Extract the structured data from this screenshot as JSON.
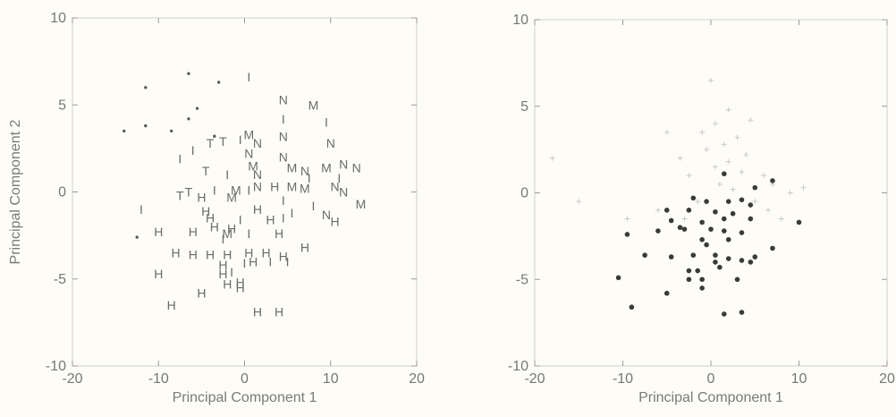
{
  "chart_data": [
    {
      "type": "scatter",
      "marker_style": "letter",
      "xlabel": "Principal Component 1",
      "ylabel": "Principal Component 2",
      "xlim": [
        -20,
        20
      ],
      "ylim": [
        -10,
        10
      ],
      "xticks": [
        -20,
        -10,
        0,
        10,
        20
      ],
      "yticks": [
        -10,
        -5,
        0,
        5,
        10
      ],
      "xtick_labels": [
        "-20",
        "-10",
        "0",
        "10",
        "20"
      ],
      "ytick_labels": [
        "-10",
        "-5",
        "0",
        "5",
        "10"
      ],
      "grid": false,
      "points": [
        {
          "x": -14.0,
          "y": 3.5,
          "label": "."
        },
        {
          "x": -11.5,
          "y": 6.0,
          "label": "."
        },
        {
          "x": -11.5,
          "y": 3.8,
          "label": "."
        },
        {
          "x": -6.5,
          "y": 6.8,
          "label": "."
        },
        {
          "x": -6.5,
          "y": 4.2,
          "label": "."
        },
        {
          "x": -3.0,
          "y": 6.3,
          "label": "."
        },
        {
          "x": -12.5,
          "y": -2.6,
          "label": "."
        },
        {
          "x": -8.5,
          "y": 3.5,
          "label": "."
        },
        {
          "x": -5.5,
          "y": 4.8,
          "label": "."
        },
        {
          "x": -3.5,
          "y": 3.2,
          "label": "."
        },
        {
          "x": 0.5,
          "y": 6.6,
          "label": "I"
        },
        {
          "x": 4.5,
          "y": 5.3,
          "label": "N"
        },
        {
          "x": 8.0,
          "y": 5.0,
          "label": "M"
        },
        {
          "x": 9.5,
          "y": 4.0,
          "label": "I"
        },
        {
          "x": 4.5,
          "y": 4.2,
          "label": "I"
        },
        {
          "x": 4.5,
          "y": 3.2,
          "label": "N"
        },
        {
          "x": 10.0,
          "y": 2.8,
          "label": "N"
        },
        {
          "x": -0.5,
          "y": 3.0,
          "label": "I"
        },
        {
          "x": 0.5,
          "y": 3.3,
          "label": "M"
        },
        {
          "x": -4.0,
          "y": 2.8,
          "label": "T"
        },
        {
          "x": -2.5,
          "y": 2.9,
          "label": "T"
        },
        {
          "x": -6.0,
          "y": 2.4,
          "label": "I"
        },
        {
          "x": 1.5,
          "y": 2.8,
          "label": "N"
        },
        {
          "x": 0.5,
          "y": 2.2,
          "label": "N"
        },
        {
          "x": 1.0,
          "y": 1.5,
          "label": "M"
        },
        {
          "x": -7.5,
          "y": 1.9,
          "label": "I"
        },
        {
          "x": 4.5,
          "y": 2.0,
          "label": "N"
        },
        {
          "x": 5.5,
          "y": 1.4,
          "label": "M"
        },
        {
          "x": 7.0,
          "y": 1.2,
          "label": "N"
        },
        {
          "x": 9.5,
          "y": 1.4,
          "label": "M"
        },
        {
          "x": 11.5,
          "y": 1.6,
          "label": "N"
        },
        {
          "x": 13.0,
          "y": 1.4,
          "label": "N"
        },
        {
          "x": -4.5,
          "y": 1.2,
          "label": "T"
        },
        {
          "x": -2.0,
          "y": 1.0,
          "label": "I"
        },
        {
          "x": 1.5,
          "y": 1.0,
          "label": "N"
        },
        {
          "x": 7.5,
          "y": 0.8,
          "label": "I"
        },
        {
          "x": 11.0,
          "y": 0.8,
          "label": "I"
        },
        {
          "x": -6.5,
          "y": 0.0,
          "label": "T"
        },
        {
          "x": -3.5,
          "y": 0.1,
          "label": "I"
        },
        {
          "x": -1.0,
          "y": 0.1,
          "label": "M"
        },
        {
          "x": 0.5,
          "y": 0.1,
          "label": "I"
        },
        {
          "x": 1.5,
          "y": 0.3,
          "label": "N"
        },
        {
          "x": 3.5,
          "y": 0.3,
          "label": "H"
        },
        {
          "x": 5.5,
          "y": 0.3,
          "label": "M"
        },
        {
          "x": 7.0,
          "y": 0.2,
          "label": "M"
        },
        {
          "x": 10.5,
          "y": 0.3,
          "label": "N"
        },
        {
          "x": 11.5,
          "y": 0.0,
          "label": "N"
        },
        {
          "x": -7.5,
          "y": -0.2,
          "label": "T"
        },
        {
          "x": -5.0,
          "y": -0.3,
          "label": "H"
        },
        {
          "x": -1.5,
          "y": -0.3,
          "label": "M"
        },
        {
          "x": 4.5,
          "y": -0.5,
          "label": "I"
        },
        {
          "x": 8.0,
          "y": -0.8,
          "label": "I"
        },
        {
          "x": 13.5,
          "y": -0.7,
          "label": "M"
        },
        {
          "x": -12.0,
          "y": -1.0,
          "label": "I"
        },
        {
          "x": -4.5,
          "y": -1.1,
          "label": "H"
        },
        {
          "x": 1.5,
          "y": -1.0,
          "label": "H"
        },
        {
          "x": 5.5,
          "y": -1.2,
          "label": "I"
        },
        {
          "x": -4.0,
          "y": -1.5,
          "label": "H"
        },
        {
          "x": -0.5,
          "y": -1.6,
          "label": "I"
        },
        {
          "x": 3.0,
          "y": -1.6,
          "label": "H"
        },
        {
          "x": 4.5,
          "y": -1.5,
          "label": "I"
        },
        {
          "x": 9.5,
          "y": -1.3,
          "label": "N"
        },
        {
          "x": 10.5,
          "y": -1.7,
          "label": "H"
        },
        {
          "x": -3.5,
          "y": -2.0,
          "label": "H"
        },
        {
          "x": -1.5,
          "y": -2.1,
          "label": "H"
        },
        {
          "x": -10.0,
          "y": -2.3,
          "label": "H"
        },
        {
          "x": -6.0,
          "y": -2.3,
          "label": "H"
        },
        {
          "x": -2.0,
          "y": -2.4,
          "label": "M"
        },
        {
          "x": 0.5,
          "y": -2.4,
          "label": "I"
        },
        {
          "x": 4.0,
          "y": -2.4,
          "label": "H"
        },
        {
          "x": -2.5,
          "y": -2.7,
          "label": "I"
        },
        {
          "x": 7.0,
          "y": -3.2,
          "label": "H"
        },
        {
          "x": -8.0,
          "y": -3.5,
          "label": "H"
        },
        {
          "x": -6.0,
          "y": -3.6,
          "label": "H"
        },
        {
          "x": -4.0,
          "y": -3.6,
          "label": "H"
        },
        {
          "x": -2.0,
          "y": -3.6,
          "label": "H"
        },
        {
          "x": 0.5,
          "y": -3.5,
          "label": "H"
        },
        {
          "x": 2.5,
          "y": -3.5,
          "label": "H"
        },
        {
          "x": 4.5,
          "y": -3.7,
          "label": "H"
        },
        {
          "x": 1.0,
          "y": -4.0,
          "label": "H"
        },
        {
          "x": 3.0,
          "y": -4.0,
          "label": "I"
        },
        {
          "x": 5.0,
          "y": -4.0,
          "label": "I"
        },
        {
          "x": -2.5,
          "y": -4.2,
          "label": "H"
        },
        {
          "x": 0.0,
          "y": -4.1,
          "label": "I"
        },
        {
          "x": -2.5,
          "y": -4.7,
          "label": "H"
        },
        {
          "x": -1.5,
          "y": -4.6,
          "label": "I"
        },
        {
          "x": -10.0,
          "y": -4.7,
          "label": "H"
        },
        {
          "x": -2.0,
          "y": -5.3,
          "label": "H"
        },
        {
          "x": -0.5,
          "y": -5.2,
          "label": "H"
        },
        {
          "x": -5.0,
          "y": -5.8,
          "label": "H"
        },
        {
          "x": -0.5,
          "y": -5.5,
          "label": "H"
        },
        {
          "x": -8.5,
          "y": -6.5,
          "label": "H"
        },
        {
          "x": 1.5,
          "y": -6.9,
          "label": "H"
        },
        {
          "x": 4.0,
          "y": -6.9,
          "label": "H"
        }
      ]
    },
    {
      "type": "scatter",
      "marker_style": "symbol",
      "xlabel": "Principal Component 1",
      "ylabel": "",
      "xlim": [
        -20,
        20
      ],
      "ylim": [
        -10,
        10
      ],
      "xticks": [
        -20,
        -10,
        0,
        10,
        20
      ],
      "yticks": [
        -10,
        -5,
        0,
        5,
        10
      ],
      "xtick_labels": [
        "-20",
        "-10",
        "0",
        "10",
        "20"
      ],
      "ytick_labels": [
        "-10",
        "-5",
        "0",
        "5",
        "10"
      ],
      "grid": false,
      "series": [
        {
          "marker": "plus",
          "color": "#c9c9c9",
          "points": [
            {
              "x": -18.0,
              "y": 2.0
            },
            {
              "x": -15.0,
              "y": -0.5
            },
            {
              "x": -9.5,
              "y": -1.5
            },
            {
              "x": -5.0,
              "y": 3.5
            },
            {
              "x": -3.5,
              "y": 2.0
            },
            {
              "x": -2.5,
              "y": 1.0
            },
            {
              "x": -1.0,
              "y": 3.5
            },
            {
              "x": -0.5,
              "y": 2.5
            },
            {
              "x": 0.0,
              "y": 6.5
            },
            {
              "x": 0.5,
              "y": 1.5
            },
            {
              "x": 0.5,
              "y": 4.0
            },
            {
              "x": 1.0,
              "y": 0.5
            },
            {
              "x": 1.5,
              "y": 2.8
            },
            {
              "x": 2.0,
              "y": 1.8
            },
            {
              "x": 2.5,
              "y": 0.2
            },
            {
              "x": 3.0,
              "y": 3.2
            },
            {
              "x": 3.5,
              "y": 1.2
            },
            {
              "x": 4.0,
              "y": 2.2
            },
            {
              "x": 4.5,
              "y": 4.2
            },
            {
              "x": 5.0,
              "y": -0.5
            },
            {
              "x": 6.0,
              "y": 1.0
            },
            {
              "x": 6.5,
              "y": -1.0
            },
            {
              "x": 7.0,
              "y": 0.5
            },
            {
              "x": 8.0,
              "y": -1.5
            },
            {
              "x": 9.0,
              "y": 0.0
            },
            {
              "x": -1.5,
              "y": -0.5
            },
            {
              "x": -3.0,
              "y": -1.5
            },
            {
              "x": 10.5,
              "y": 0.3
            },
            {
              "x": -6.0,
              "y": -1.0
            },
            {
              "x": 2.0,
              "y": 4.8
            }
          ]
        },
        {
          "marker": "dot",
          "color": "#3a3a3a",
          "points": [
            {
              "x": 1.5,
              "y": 1.1
            },
            {
              "x": 5.0,
              "y": 0.3
            },
            {
              "x": 7.0,
              "y": 0.7
            },
            {
              "x": 3.5,
              "y": -0.4
            },
            {
              "x": -2.0,
              "y": -0.3
            },
            {
              "x": -0.5,
              "y": -0.5
            },
            {
              "x": 2.0,
              "y": -0.5
            },
            {
              "x": 4.5,
              "y": -0.7
            },
            {
              "x": -5.0,
              "y": -1.0
            },
            {
              "x": -2.5,
              "y": -1.0
            },
            {
              "x": 0.5,
              "y": -1.1
            },
            {
              "x": 2.5,
              "y": -1.2
            },
            {
              "x": -4.5,
              "y": -1.6
            },
            {
              "x": -1.0,
              "y": -1.7
            },
            {
              "x": 1.5,
              "y": -1.5
            },
            {
              "x": 4.5,
              "y": -1.5
            },
            {
              "x": -3.0,
              "y": -2.1
            },
            {
              "x": 0.0,
              "y": -2.1
            },
            {
              "x": 10.0,
              "y": -1.7
            },
            {
              "x": -9.5,
              "y": -2.4
            },
            {
              "x": -6.0,
              "y": -2.2
            },
            {
              "x": 3.5,
              "y": -2.3
            },
            {
              "x": -1.0,
              "y": -2.7
            },
            {
              "x": 2.0,
              "y": -2.7
            },
            {
              "x": 7.0,
              "y": -3.2
            },
            {
              "x": -7.5,
              "y": -3.6
            },
            {
              "x": -4.5,
              "y": -3.7
            },
            {
              "x": -2.0,
              "y": -3.6
            },
            {
              "x": 0.5,
              "y": -3.6
            },
            {
              "x": 2.0,
              "y": -3.8
            },
            {
              "x": 3.5,
              "y": -3.9
            },
            {
              "x": 4.5,
              "y": -4.0
            },
            {
              "x": -2.5,
              "y": -4.5
            },
            {
              "x": -1.5,
              "y": -4.5
            },
            {
              "x": 0.5,
              "y": -4.0
            },
            {
              "x": 1.0,
              "y": -4.3
            },
            {
              "x": -2.5,
              "y": -5.0
            },
            {
              "x": -1.0,
              "y": -5.0
            },
            {
              "x": -5.0,
              "y": -5.8
            },
            {
              "x": -1.0,
              "y": -5.5
            },
            {
              "x": -10.5,
              "y": -4.9
            },
            {
              "x": -9.0,
              "y": -6.6
            },
            {
              "x": 1.5,
              "y": -7.0
            },
            {
              "x": 3.5,
              "y": -6.9
            },
            {
              "x": -0.5,
              "y": -3.0
            },
            {
              "x": 1.5,
              "y": -2.2
            },
            {
              "x": -3.5,
              "y": -2.0
            },
            {
              "x": 3.0,
              "y": -5.0
            },
            {
              "x": 5.0,
              "y": -3.7
            }
          ]
        }
      ]
    }
  ]
}
